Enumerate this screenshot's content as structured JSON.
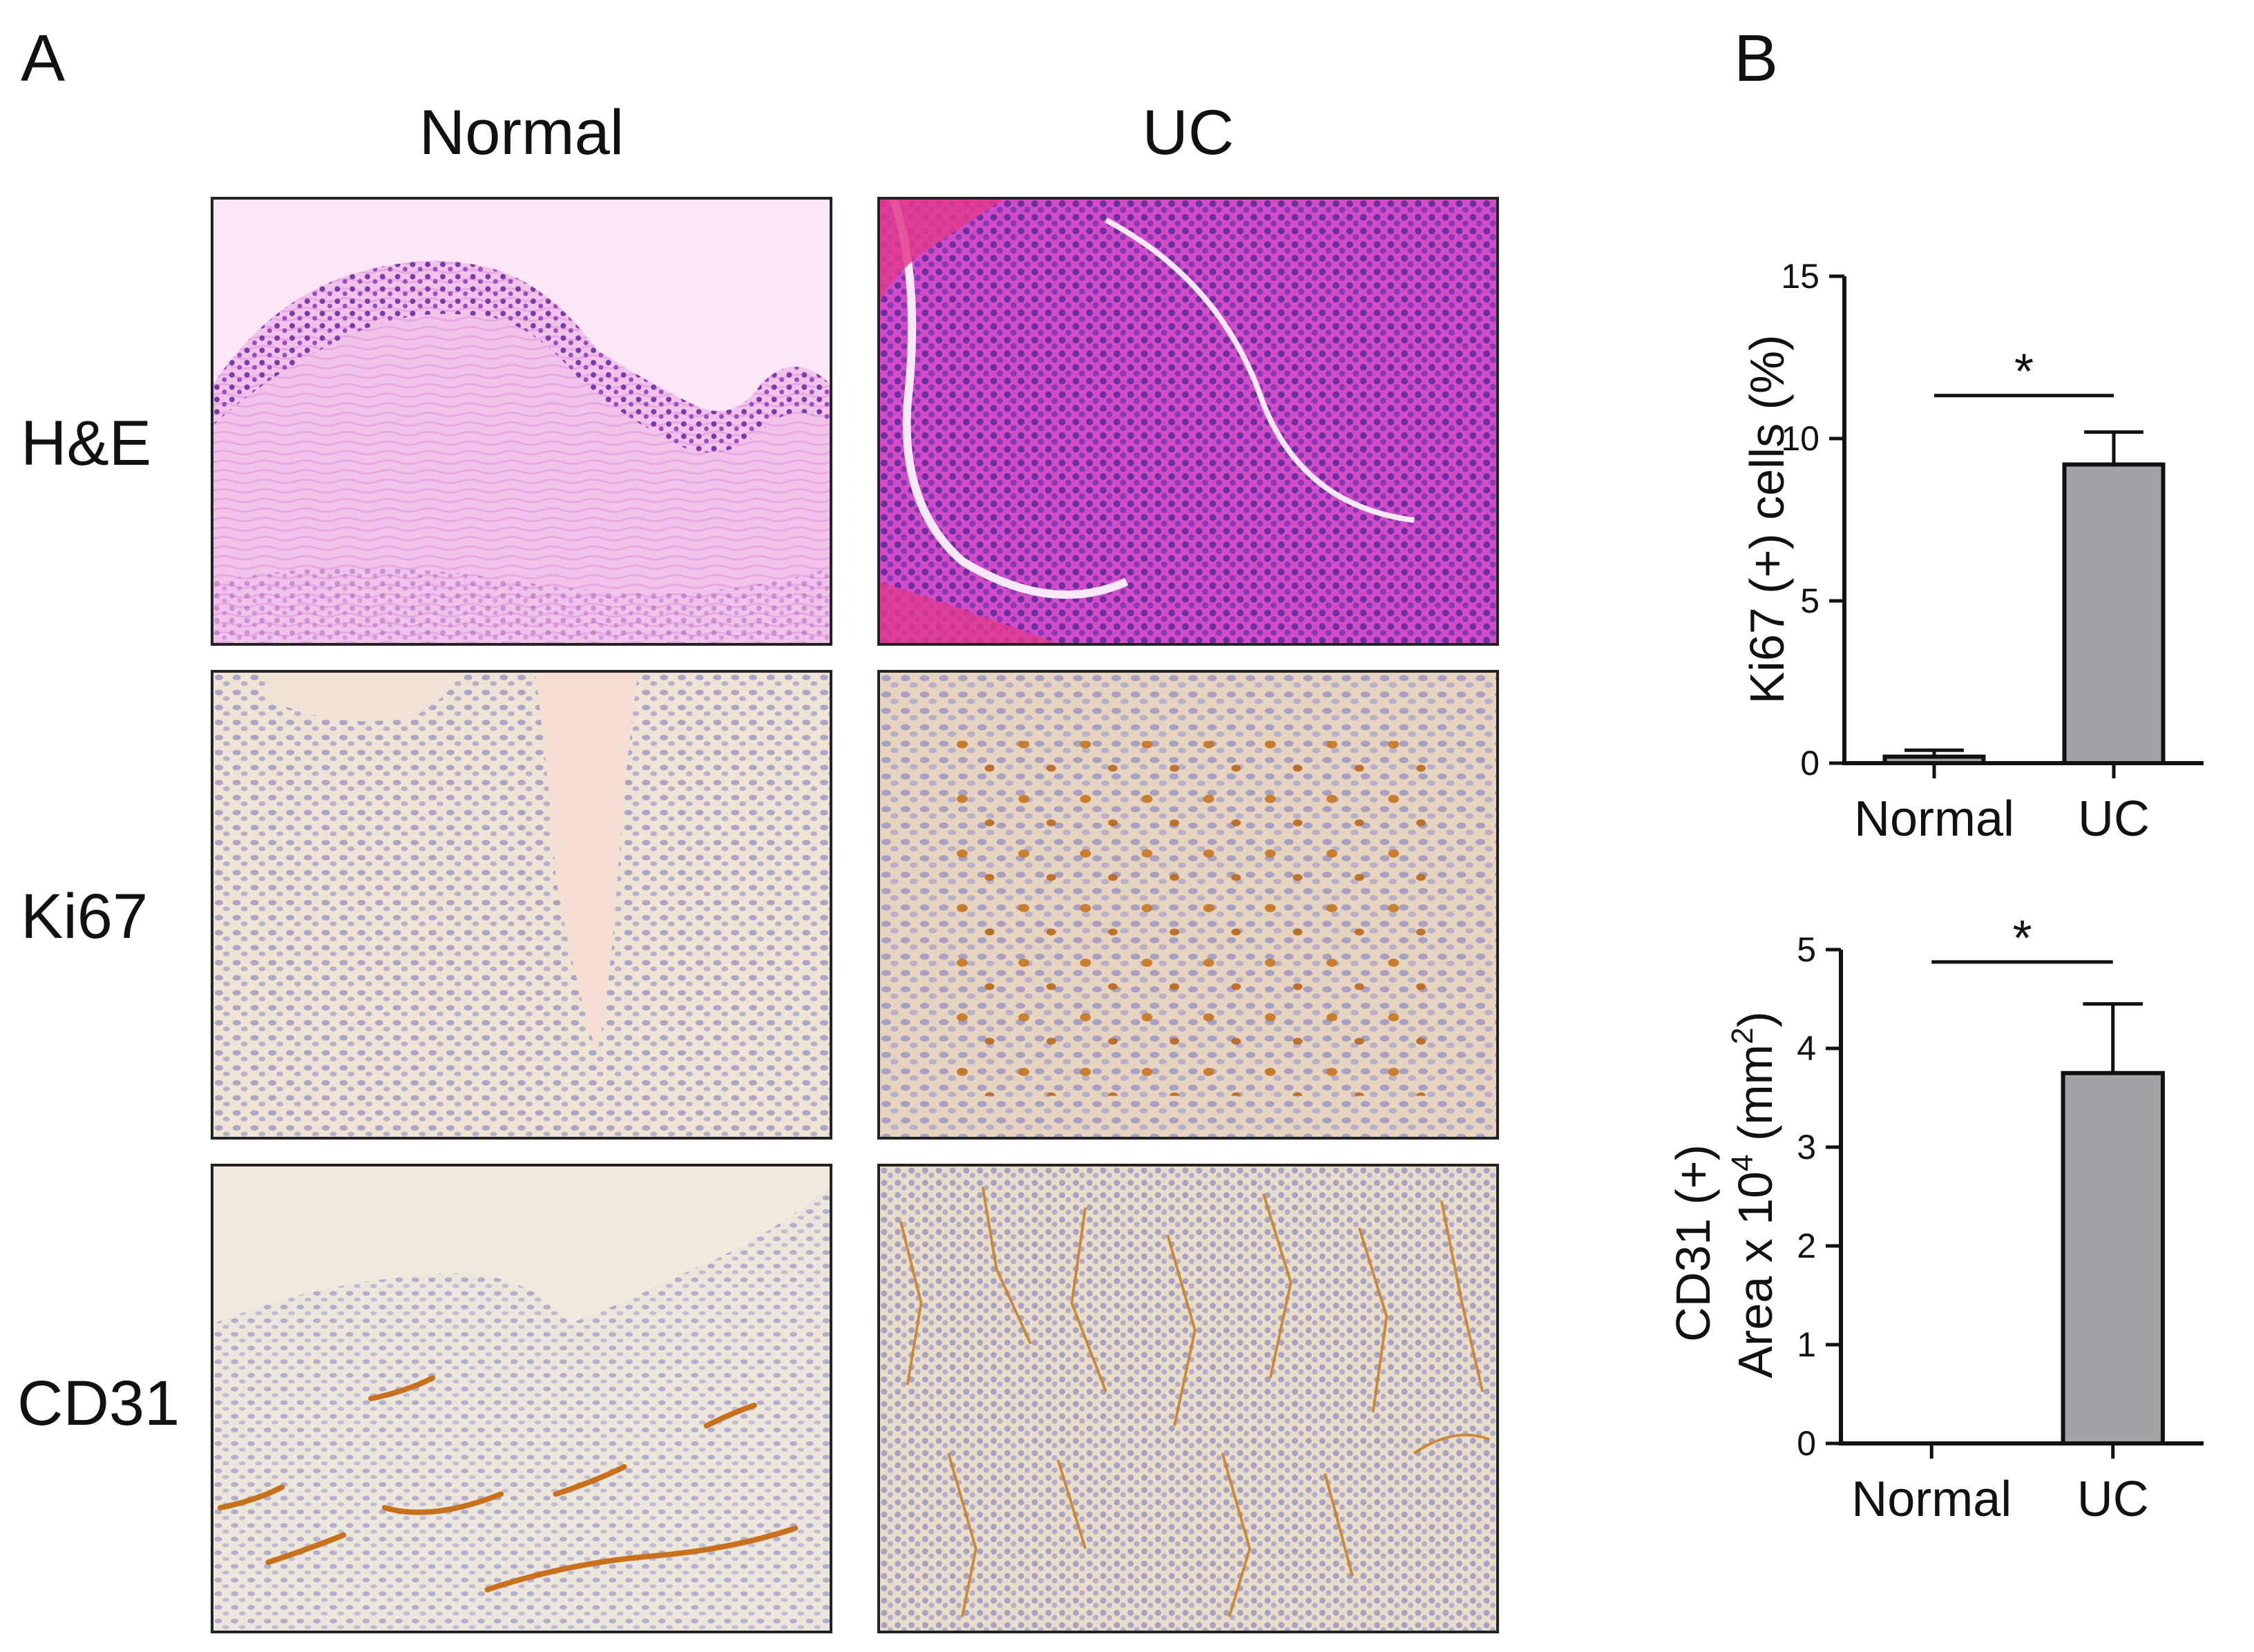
{
  "panels": {
    "a": {
      "letter": "A"
    },
    "b": {
      "letter": "B"
    }
  },
  "columns": {
    "normal": "Normal",
    "uc": "UC"
  },
  "rows": {
    "he": "H&E",
    "ki67": "Ki67",
    "cd31": "CD31"
  },
  "colors": {
    "he_bg": "#f6c6ee",
    "he_tissue": "#d46ad8",
    "he_uc_bg": "#c23bb8",
    "ihc_bg": "#eadcc8",
    "ihc_nuclei": "#8a86b8",
    "dab": "#c97a22",
    "bar_fill": "#a3a2a7",
    "axis": "#111111"
  },
  "chart_data": [
    {
      "type": "bar",
      "categories": [
        "Normal",
        "UC"
      ],
      "values": [
        0.2,
        9.2
      ],
      "errors": [
        0.2,
        1.0
      ],
      "ylabel": "Ki67 (+) cells (%)",
      "ylim": [
        0,
        15
      ],
      "yticks": [
        0,
        5,
        10,
        15
      ],
      "significance": "*"
    },
    {
      "type": "bar",
      "categories": [
        "Normal",
        "UC"
      ],
      "values": [
        0.0,
        3.75
      ],
      "errors": [
        0.0,
        0.7
      ],
      "ylabel_line1": "CD31 (+)",
      "ylabel_line2_pre": "Area x 10",
      "ylabel_line2_sup": "4",
      "ylabel_line2_post": " (mm",
      "ylabel_line2_sup2": "2",
      "ylabel_line2_end": ")",
      "ylim": [
        0,
        5
      ],
      "yticks": [
        0,
        1,
        2,
        3,
        4,
        5
      ],
      "significance": "*"
    }
  ]
}
